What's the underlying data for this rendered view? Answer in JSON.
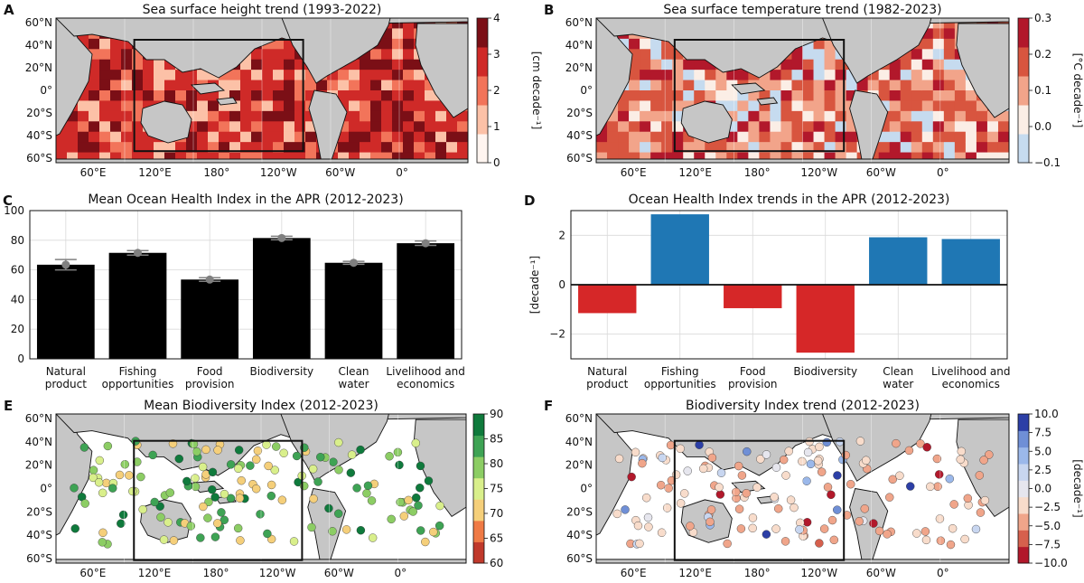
{
  "figure": {
    "panels": [
      {
        "letter": "A",
        "title": "Sea surface height trend (1993-2022)",
        "cbar_label": "[cm decade⁻¹]",
        "cbar_ticks": [
          "4",
          "3",
          "2",
          "1",
          "0"
        ],
        "cbar_colors": [
          "#fff5f0",
          "#fcc1a7",
          "#f2745a",
          "#cf2a28",
          "#7b0f16"
        ],
        "lat_labels": [
          "60°N",
          "40°N",
          "20°N",
          "0°",
          "20°S",
          "40°S",
          "60°S"
        ],
        "lon_labels": [
          "60°E",
          "120°E",
          "180°",
          "120°W",
          "60°W",
          "0°"
        ]
      },
      {
        "letter": "B",
        "title": "Sea surface temperature trend (1982-2023)",
        "cbar_label": "[°C decade⁻¹]",
        "cbar_ticks": [
          "0.3",
          "0.2",
          "0.1",
          "0.0",
          "−0.1"
        ],
        "cbar_colors": [
          "#c6dbef",
          "#fbeee6",
          "#f2a48a",
          "#d8553f",
          "#b2182b"
        ],
        "lat_labels": [
          "60°N",
          "40°N",
          "20°N",
          "0°",
          "20°S",
          "40°S",
          "60°S"
        ],
        "lon_labels": [
          "60°E",
          "120°E",
          "180°",
          "120°W",
          "60°W",
          "0°"
        ]
      },
      {
        "letter": "C"
      },
      {
        "letter": "D"
      },
      {
        "letter": "E",
        "title": "Mean Biodiversity Index (2012-2023)",
        "cbar_ticks": [
          "90",
          "85",
          "80",
          "75",
          "70",
          "65",
          "60"
        ],
        "cbar_colors": [
          "#c0392b",
          "#ef7a45",
          "#f5cf7a",
          "#d9ef8b",
          "#8ccd64",
          "#3ea354",
          "#0f7a3c"
        ],
        "lat_labels": [
          "60°N",
          "40°N",
          "20°N",
          "0°",
          "20°S",
          "40°S",
          "60°S"
        ],
        "lon_labels": [
          "60°E",
          "120°E",
          "180°",
          "120°W",
          "60°W",
          "0°"
        ]
      },
      {
        "letter": "F",
        "title": "Biodiversity Index trend (2012-2023)",
        "cbar_label": "[decade⁻¹]",
        "cbar_ticks": [
          "10.0",
          "7.5",
          "5.0",
          "2.5",
          "0.0",
          "−2.5",
          "−5.0",
          "−7.5",
          "−10.0"
        ],
        "cbar_colors": [
          "#b2182b",
          "#d6604d",
          "#f0a58a",
          "#f8dccb",
          "#e6e6ee",
          "#c8d6f0",
          "#9bb8ea",
          "#6f8fd6",
          "#2c3fa6"
        ],
        "lat_labels": [
          "60°N",
          "40°N",
          "20°N",
          "0°",
          "20°S",
          "40°S",
          "60°S"
        ],
        "lon_labels": [
          "60°E",
          "120°E",
          "180°",
          "120°W",
          "60°W",
          "0°"
        ]
      }
    ]
  },
  "chart_data": [
    {
      "type": "bar",
      "title": "Mean Ocean Health Index in the APR (2012-2023)",
      "categories": [
        "Natural\nproduct",
        "Fishing\nopportunities",
        "Food\nprovision",
        "Biodiversity",
        "Clean\nwater",
        "Livelihood and\neconomics"
      ],
      "values": [
        63.5,
        71.5,
        53.5,
        81.5,
        64.8,
        78.0
      ],
      "means": [
        63.5,
        71.5,
        53.5,
        81.5,
        64.8,
        78.0
      ],
      "errors": [
        3.5,
        1.5,
        1.2,
        1.2,
        1.0,
        1.5
      ],
      "yticks": [
        "0",
        "20",
        "40",
        "60",
        "80",
        "100"
      ],
      "ylim": [
        0,
        100
      ],
      "bar_color": "#000000",
      "marker_color": "#808080"
    },
    {
      "type": "bar",
      "title": "Ocean Health Index trends in the APR (2012-2023)",
      "ylabel": "[decade⁻¹]",
      "categories": [
        "Natural\nproduct",
        "Fishing\nopportunities",
        "Food\nprovision",
        "Biodiversity",
        "Clean\nwater",
        "Livelihood and\neconomics"
      ],
      "values": [
        -1.15,
        2.85,
        -0.95,
        -2.75,
        1.92,
        1.85
      ],
      "yticks": [
        "−2",
        "0",
        "2"
      ],
      "ylim": [
        -3.0,
        3.0
      ],
      "pos_color": "#1f77b4",
      "neg_color": "#d62728"
    }
  ],
  "colors": {
    "land": "#c6c6c6"
  }
}
